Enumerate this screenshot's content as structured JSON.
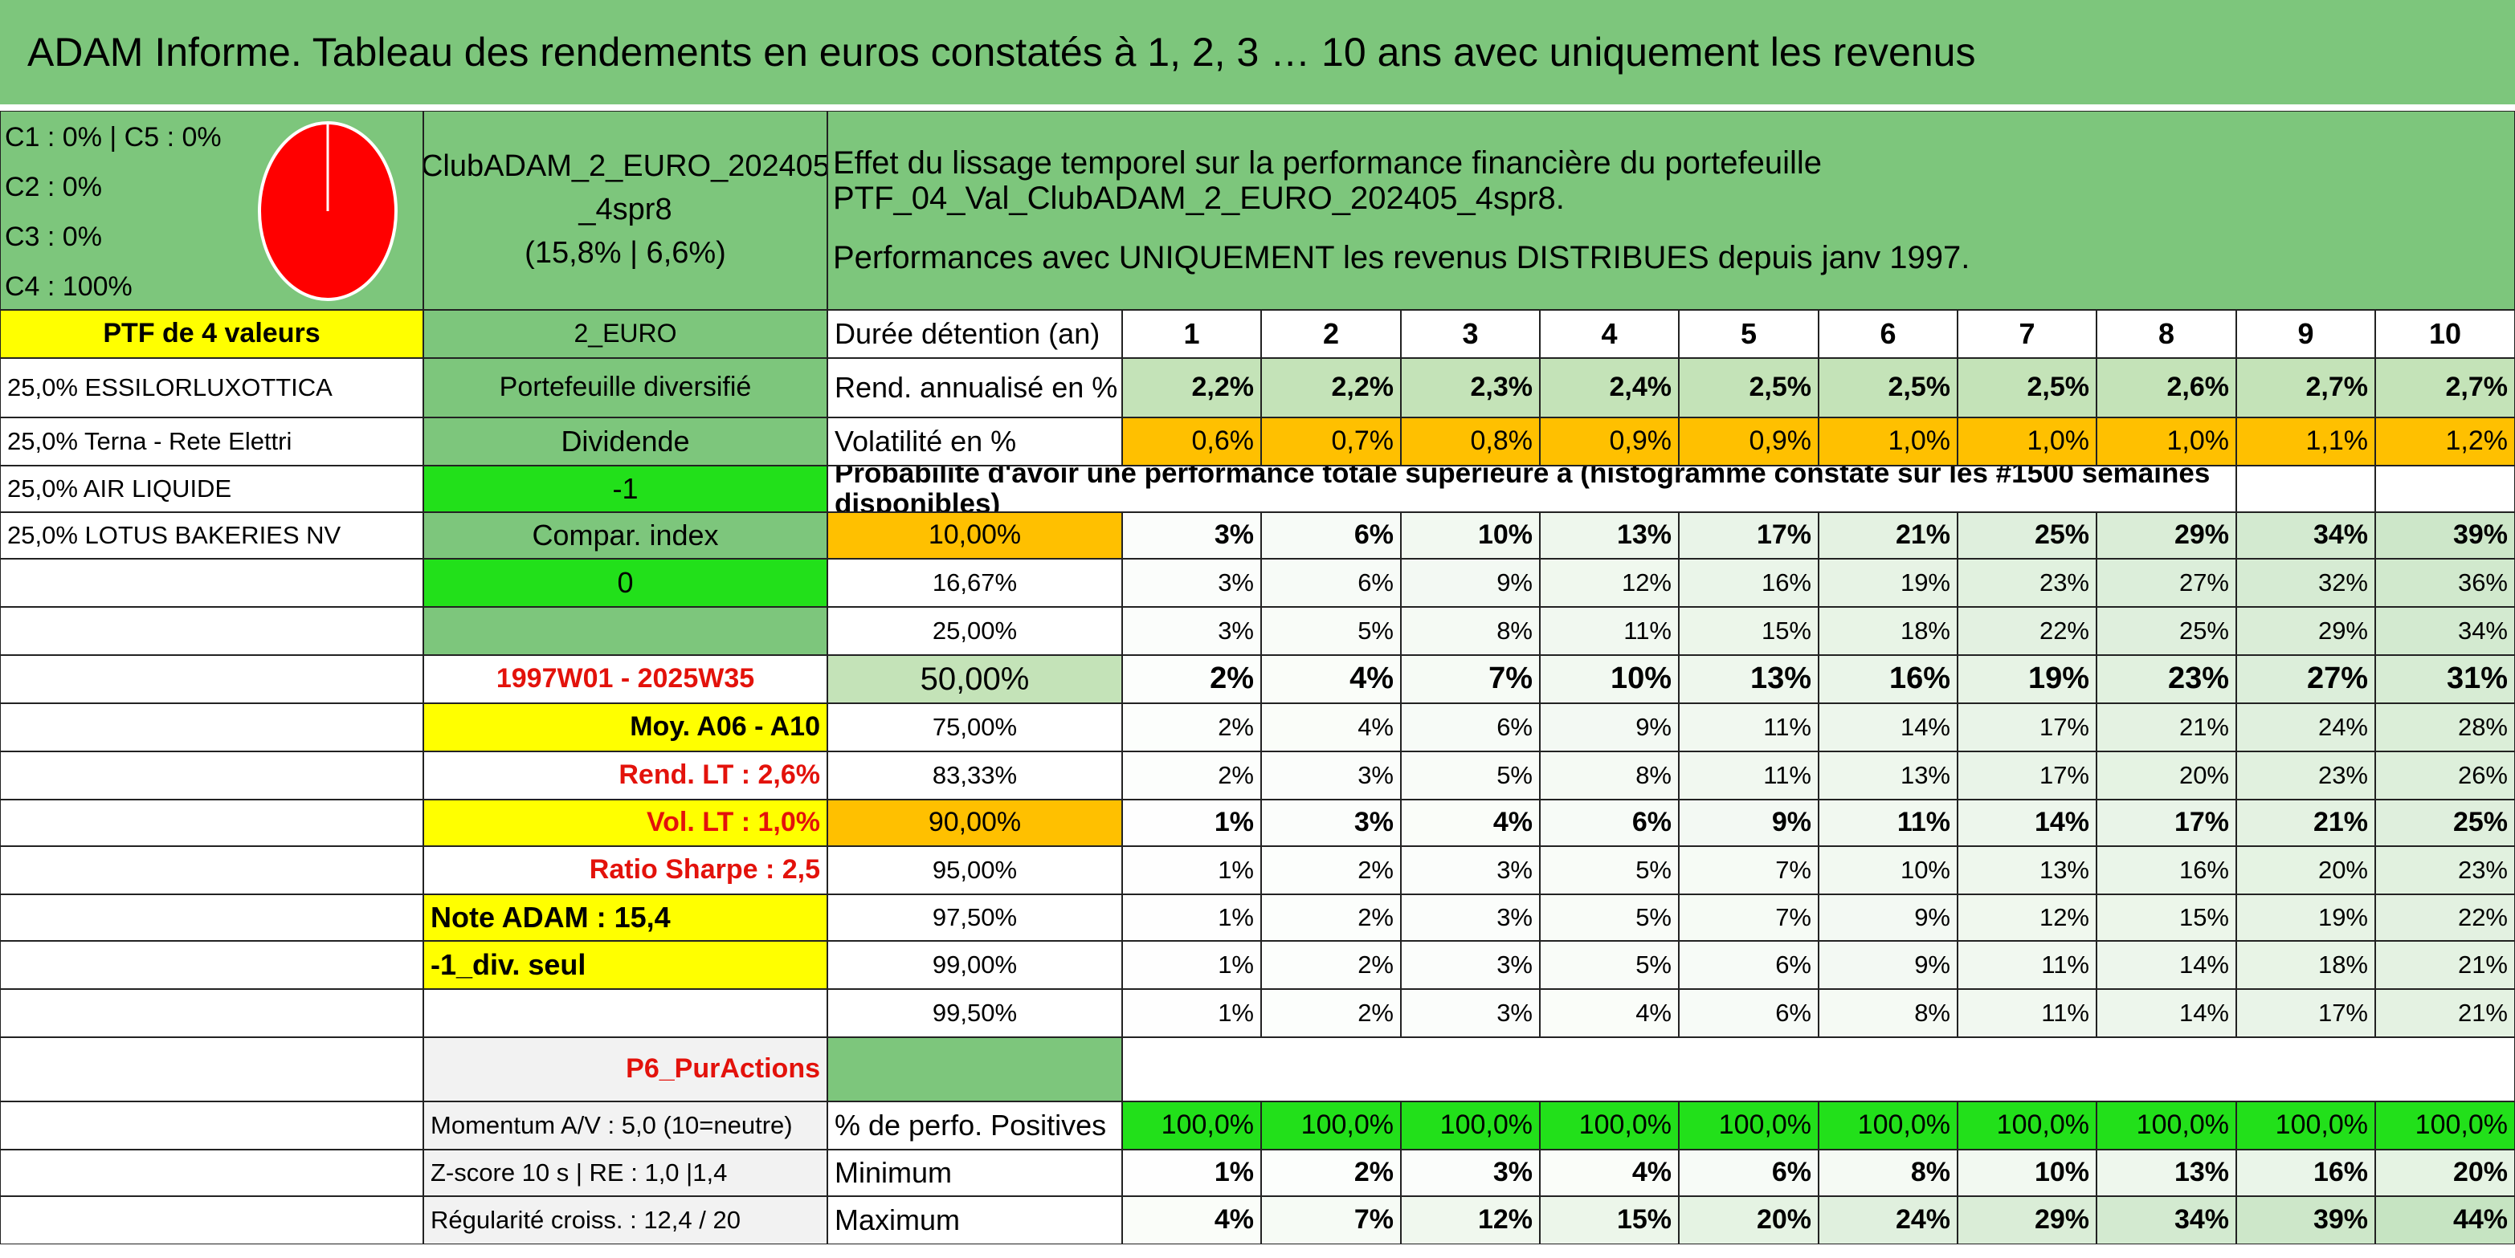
{
  "title": "ADAM Informe. Tableau des rendements en euros constatés à 1, 2, 3 … 10 ans avec uniquement les revenus",
  "colors": {
    "green": "#7dc67c",
    "yellow": "#ffff00",
    "bright_green": "#22e01a",
    "light_green": "#c4e3b8",
    "orange": "#ffc000",
    "red_text": "#e3120b",
    "pie": "#ff0000"
  },
  "allocation": {
    "line1": "C1 : 0% | C5 : 0%",
    "line2": "C2 : 0%",
    "line3": "C3 : 0%",
    "line4": "C4 : 100%"
  },
  "portfolio": {
    "name_line1": "ClubADAM_2_EURO_202405",
    "name_line2": "_4spr8",
    "name_line3": "(15,8% | 6,6%)",
    "description_line1": "Effet du lissage temporel sur la performance financière du portefeuille PTF_04_Val_ClubADAM_2_EURO_202405_4spr8.",
    "description_line2": "Performances avec UNIQUEMENT les revenus DISTRIBUES depuis janv 1997."
  },
  "left": {
    "header": "PTF de 4 valeurs",
    "holdings": [
      "25,0% ESSILORLUXOTTICA",
      "25,0% Terna - Rete Elettri",
      "25,0% AIR LIQUIDE",
      "25,0% LOTUS BAKERIES NV"
    ]
  },
  "mid": {
    "code": "2_EURO",
    "type": "Portefeuille diversifié",
    "dividende": "Dividende",
    "minus_one": "-1",
    "compar_index": "Compar. index",
    "zero": "0",
    "blank": "",
    "period": "1997W01 - 2025W35",
    "moy": "Moy. A06 - A10",
    "rend_lt": "Rend. LT : 2,6%",
    "vol_lt": "Vol. LT : 1,0%",
    "sharpe": "Ratio Sharpe : 2,5",
    "note": "Note ADAM : 15,4",
    "div_seul": "-1_div. seul",
    "p6": "P6_PurActions",
    "momentum": "Momentum A/V : 5,0 (10=neutre)",
    "zscore": "Z-score 10 s | RE : 1,0 |1,4",
    "regularite": "Régularité croiss. : 12,4 / 20"
  },
  "table": {
    "duree_label": "Durée détention (an)",
    "years": [
      "1",
      "2",
      "3",
      "4",
      "5",
      "6",
      "7",
      "8",
      "9",
      "10"
    ],
    "rend_label": "Rend. annualisé en %",
    "rend": [
      "2,2%",
      "2,2%",
      "2,3%",
      "2,4%",
      "2,5%",
      "2,5%",
      "2,5%",
      "2,6%",
      "2,7%",
      "2,7%"
    ],
    "vol_label": "Volatilité en %",
    "vol": [
      "0,6%",
      "0,7%",
      "0,8%",
      "0,9%",
      "0,9%",
      "1,0%",
      "1,0%",
      "1,0%",
      "1,1%",
      "1,2%"
    ],
    "proba_header": "Probabilité d'avoir une performance totale supérieure à (histogramme constaté sur les #1500 semaines disponibles)",
    "proba_rows": [
      {
        "label": "10,00%",
        "values": [
          "3%",
          "6%",
          "10%",
          "13%",
          "17%",
          "21%",
          "25%",
          "29%",
          "34%",
          "39%"
        ]
      },
      {
        "label": "16,67%",
        "values": [
          "3%",
          "6%",
          "9%",
          "12%",
          "16%",
          "19%",
          "23%",
          "27%",
          "32%",
          "36%"
        ]
      },
      {
        "label": "25,00%",
        "values": [
          "3%",
          "5%",
          "8%",
          "11%",
          "15%",
          "18%",
          "22%",
          "25%",
          "29%",
          "34%"
        ]
      },
      {
        "label": "50,00%",
        "values": [
          "2%",
          "4%",
          "7%",
          "10%",
          "13%",
          "16%",
          "19%",
          "23%",
          "27%",
          "31%"
        ]
      },
      {
        "label": "75,00%",
        "values": [
          "2%",
          "4%",
          "6%",
          "9%",
          "11%",
          "14%",
          "17%",
          "21%",
          "24%",
          "28%"
        ]
      },
      {
        "label": "83,33%",
        "values": [
          "2%",
          "3%",
          "5%",
          "8%",
          "11%",
          "13%",
          "17%",
          "20%",
          "23%",
          "26%"
        ]
      },
      {
        "label": "90,00%",
        "values": [
          "1%",
          "3%",
          "4%",
          "6%",
          "9%",
          "11%",
          "14%",
          "17%",
          "21%",
          "25%"
        ]
      },
      {
        "label": "95,00%",
        "values": [
          "1%",
          "2%",
          "3%",
          "5%",
          "7%",
          "10%",
          "13%",
          "16%",
          "20%",
          "23%"
        ]
      },
      {
        "label": "97,50%",
        "values": [
          "1%",
          "2%",
          "3%",
          "5%",
          "7%",
          "9%",
          "12%",
          "15%",
          "19%",
          "22%"
        ]
      },
      {
        "label": "99,00%",
        "values": [
          "1%",
          "2%",
          "3%",
          "5%",
          "6%",
          "9%",
          "11%",
          "14%",
          "18%",
          "21%"
        ]
      },
      {
        "label": "99,50%",
        "values": [
          "1%",
          "2%",
          "3%",
          "4%",
          "6%",
          "8%",
          "11%",
          "14%",
          "17%",
          "21%"
        ]
      }
    ],
    "pos_label": "% de perfo. Positives",
    "pos": [
      "100,0%",
      "100,0%",
      "100,0%",
      "100,0%",
      "100,0%",
      "100,0%",
      "100,0%",
      "100,0%",
      "100,0%",
      "100,0%"
    ],
    "min_label": "Minimum",
    "min": [
      "1%",
      "2%",
      "3%",
      "4%",
      "6%",
      "8%",
      "10%",
      "13%",
      "16%",
      "20%"
    ],
    "max_label": "Maximum",
    "max": [
      "4%",
      "7%",
      "12%",
      "15%",
      "20%",
      "24%",
      "29%",
      "34%",
      "39%",
      "44%"
    ]
  }
}
